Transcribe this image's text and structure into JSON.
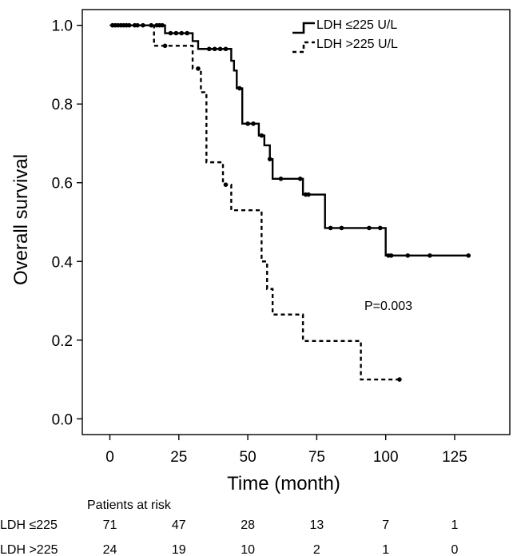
{
  "chart_data": {
    "type": "line",
    "subtype": "kaplan-meier",
    "xlabel": "Time (month)",
    "ylabel": "Overall survival",
    "xlim": [
      -10,
      145
    ],
    "ylim": [
      -0.04,
      1.04
    ],
    "xticks": [
      0,
      25,
      50,
      75,
      100,
      125
    ],
    "yticks": [
      "0.0",
      "0.2",
      "0.4",
      "0.6",
      "0.8",
      "1.0"
    ],
    "legend": {
      "placement": "top-right",
      "entries": [
        {
          "name": "LDH ≤225 U/L",
          "style": "solid"
        },
        {
          "name": "LDH >225 U/L",
          "style": "dashed"
        }
      ]
    },
    "annotation": "P=0.003",
    "series": [
      {
        "name": "LDH ≤225 U/L",
        "style": "solid",
        "steps": [
          [
            0,
            1.0
          ],
          [
            20,
            0.98
          ],
          [
            30,
            0.96
          ],
          [
            32,
            0.94
          ],
          [
            44,
            0.91
          ],
          [
            45,
            0.885
          ],
          [
            46,
            0.84
          ],
          [
            48,
            0.75
          ],
          [
            54,
            0.72
          ],
          [
            56,
            0.695
          ],
          [
            58,
            0.66
          ],
          [
            59,
            0.61
          ],
          [
            63,
            0.61
          ],
          [
            70,
            0.57
          ],
          [
            78,
            0.485
          ],
          [
            100,
            0.415
          ],
          [
            130,
            0.415
          ]
        ],
        "censored": [
          [
            1,
            1.0
          ],
          [
            3,
            1.0
          ],
          [
            4,
            1.0
          ],
          [
            5,
            1.0
          ],
          [
            6,
            1.0
          ],
          [
            7,
            1.0
          ],
          [
            9,
            1.0
          ],
          [
            10,
            1.0
          ],
          [
            12,
            1.0
          ],
          [
            15,
            1.0
          ],
          [
            17,
            1.0
          ],
          [
            18,
            1.0
          ],
          [
            19,
            1.0
          ],
          [
            22,
            0.98
          ],
          [
            24,
            0.98
          ],
          [
            26,
            0.98
          ],
          [
            28,
            0.98
          ],
          [
            36,
            0.94
          ],
          [
            38,
            0.94
          ],
          [
            40,
            0.94
          ],
          [
            42,
            0.94
          ],
          [
            47,
            0.84
          ],
          [
            50,
            0.75
          ],
          [
            52,
            0.75
          ],
          [
            55,
            0.72
          ],
          [
            58,
            0.66
          ],
          [
            62,
            0.61
          ],
          [
            69,
            0.61
          ],
          [
            71,
            0.57
          ],
          [
            72,
            0.57
          ],
          [
            80,
            0.485
          ],
          [
            84,
            0.485
          ],
          [
            94,
            0.485
          ],
          [
            98,
            0.485
          ],
          [
            101,
            0.415
          ],
          [
            102,
            0.415
          ],
          [
            108,
            0.415
          ],
          [
            116,
            0.415
          ],
          [
            130,
            0.415
          ]
        ]
      },
      {
        "name": "LDH >225 U/L",
        "style": "dashed",
        "steps": [
          [
            0,
            1.0
          ],
          [
            16,
            0.948
          ],
          [
            30,
            0.89
          ],
          [
            33,
            0.83
          ],
          [
            35,
            0.652
          ],
          [
            41,
            0.595
          ],
          [
            44,
            0.53
          ],
          [
            55,
            0.4
          ],
          [
            57,
            0.33
          ],
          [
            59,
            0.265
          ],
          [
            70,
            0.198
          ],
          [
            91,
            0.1
          ],
          [
            105,
            0.1
          ]
        ],
        "censored": [
          [
            1,
            1.0
          ],
          [
            2,
            1.0
          ],
          [
            20,
            0.948
          ],
          [
            32,
            0.89
          ],
          [
            42,
            0.595
          ],
          [
            105,
            0.1
          ]
        ]
      }
    ]
  },
  "risk_table": {
    "title": "Patients at risk",
    "times": [
      0,
      25,
      50,
      75,
      100,
      125
    ],
    "rows": [
      {
        "label": "LDH ≤225",
        "values": [
          "71",
          "47",
          "28",
          "13",
          "7",
          "1"
        ]
      },
      {
        "label": "LDH >225",
        "values": [
          "24",
          "19",
          "10",
          "2",
          "1",
          "0"
        ]
      }
    ]
  }
}
